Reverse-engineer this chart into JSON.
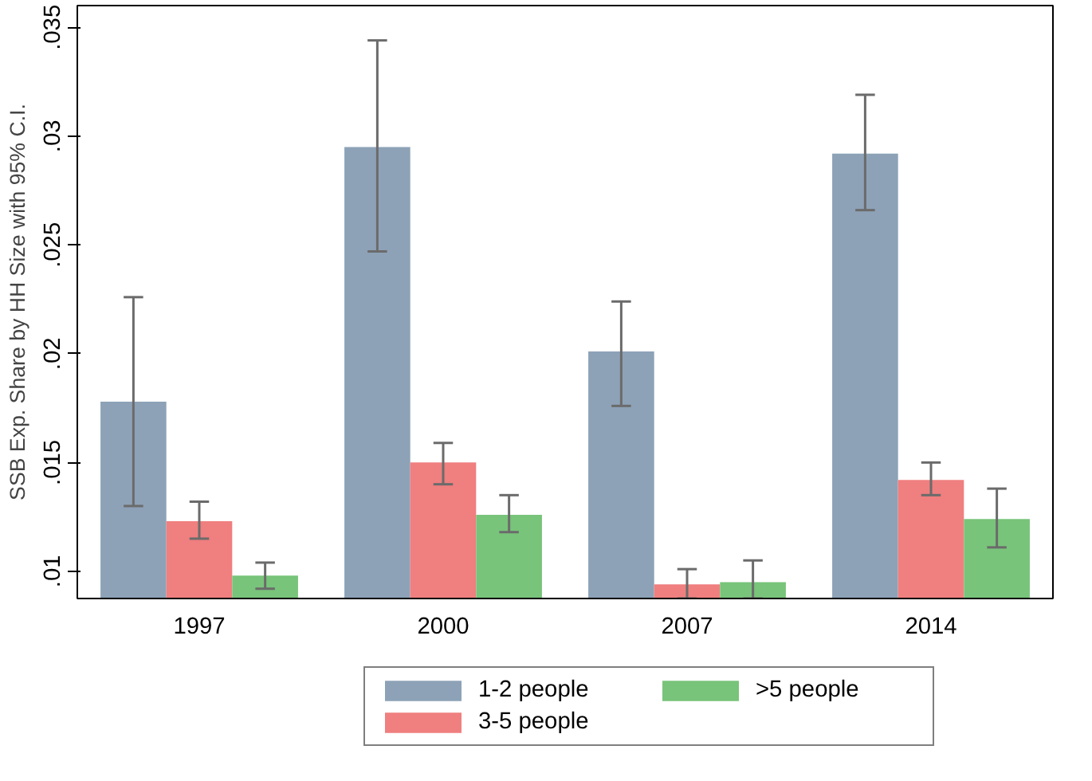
{
  "chart_data": {
    "type": "bar",
    "ylabel": "SSB Exp. Share by HH Size with 95% C.I.",
    "categories": [
      "1997",
      "2000",
      "2007",
      "2014"
    ],
    "series": [
      {
        "name": "1-2 people",
        "color": "#8da2b7",
        "values": [
          0.0178,
          0.0295,
          0.0201,
          0.0292
        ],
        "errors": [
          [
            0.013,
            0.0226
          ],
          [
            0.0247,
            0.0344
          ],
          [
            0.0176,
            0.0224
          ],
          [
            0.0266,
            0.0319
          ]
        ]
      },
      {
        "name": "3-5 people",
        "color": "#f07f7f",
        "values": [
          0.0123,
          0.015,
          0.0094,
          0.0142
        ],
        "errors": [
          [
            0.0115,
            0.0132
          ],
          [
            0.014,
            0.0159
          ],
          [
            0.00875,
            0.0101
          ],
          [
            0.0135,
            0.015
          ]
        ]
      },
      {
        "name": ">5 people",
        "color": "#78c47a",
        "values": [
          0.0098,
          0.0126,
          0.0095,
          0.0124
        ],
        "errors": [
          [
            0.0092,
            0.0104
          ],
          [
            0.0118,
            0.0135
          ],
          [
            0.00875,
            0.0105
          ],
          [
            0.0111,
            0.0138
          ]
        ]
      }
    ],
    "ylim": [
      0.00875,
      0.036
    ],
    "yticks": [
      {
        "value": 0.01,
        "label": ".01"
      },
      {
        "value": 0.015,
        "label": ".015"
      },
      {
        "value": 0.02,
        "label": ".02"
      },
      {
        "value": 0.025,
        "label": ".025"
      },
      {
        "value": 0.03,
        "label": ".03"
      },
      {
        "value": 0.035,
        "label": ".035"
      }
    ],
    "grid": false,
    "legend": "bottom"
  }
}
